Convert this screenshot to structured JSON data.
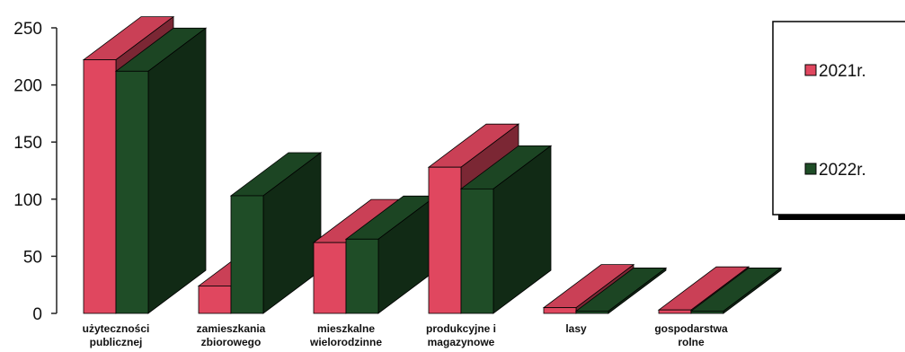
{
  "chart_data": {
    "type": "bar",
    "style": "3d-clustered-column",
    "categories": [
      [
        "użyteczności",
        "publicznej"
      ],
      [
        "zamieszkania",
        "zbiorowego"
      ],
      [
        "mieszkalne",
        "wielorodzinne"
      ],
      [
        "produkcyjne i",
        "magazynowe"
      ],
      [
        "lasy"
      ],
      [
        "gospodarstwa",
        "rolne"
      ]
    ],
    "series": [
      {
        "name": "2021r.",
        "values": [
          222,
          24,
          62,
          128,
          5,
          3
        ],
        "color": "#e0475f"
      },
      {
        "name": "2022r.",
        "values": [
          212,
          103,
          65,
          109,
          2,
          2
        ],
        "color": "#1f4d27"
      }
    ],
    "ylim": [
      0,
      250
    ],
    "yticks": [
      "0",
      "50",
      "100",
      "150",
      "200",
      "250"
    ],
    "grid": false,
    "legend_position": "right",
    "title": "",
    "xlabel": "",
    "ylabel": ""
  }
}
